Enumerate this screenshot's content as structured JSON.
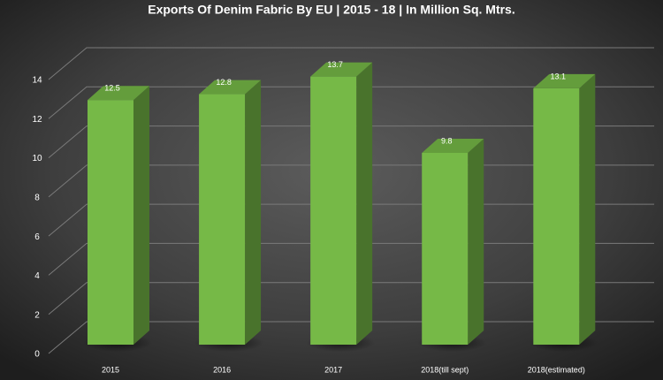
{
  "chart_data": {
    "type": "bar",
    "title": "Exports Of Denim Fabric By EU | 2015 - 18 | In Million Sq. Mtrs.",
    "categories": [
      "2015",
      "2016",
      "2017",
      "2018(till sept)",
      "2018(estimated)"
    ],
    "values": [
      12.5,
      12.8,
      13.7,
      9.8,
      13.1
    ],
    "color": "#76b947",
    "ylim": [
      0,
      14
    ],
    "yticks": [
      0,
      2,
      4,
      6,
      8,
      10,
      12,
      14
    ],
    "grid": true
  }
}
